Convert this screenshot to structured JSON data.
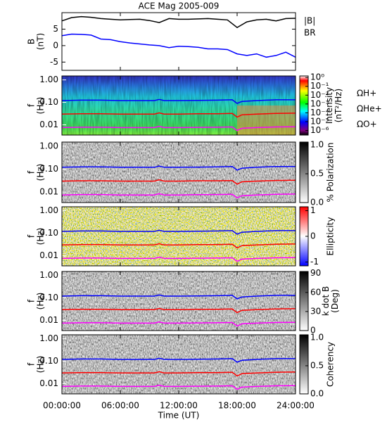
{
  "chart_data": [
    {
      "type": "line",
      "title": "ACE Mag 2005-009",
      "ylabel": [
        "B",
        "(nT)"
      ],
      "x": [
        0,
        1,
        2,
        3,
        4,
        5,
        6,
        7,
        8,
        9,
        10,
        11,
        12,
        13,
        14,
        15,
        16,
        17,
        18,
        19,
        20,
        21,
        22,
        23,
        24
      ],
      "ylim": [
        -7.5,
        10
      ],
      "yticks": [
        -5,
        0,
        5
      ],
      "series": [
        {
          "name": "|B|",
          "color": "#000000",
          "values": [
            7.5,
            8.5,
            8.8,
            8.6,
            8.2,
            8.0,
            7.8,
            7.9,
            8.0,
            7.6,
            7.0,
            8.2,
            8.0,
            8.0,
            8.1,
            8.2,
            8.0,
            7.8,
            5.5,
            7.2,
            7.8,
            8.0,
            7.5,
            8.2,
            8.3
          ]
        },
        {
          "name": "BR",
          "color": "#0000ff",
          "values": [
            3.0,
            3.5,
            3.4,
            3.2,
            2.0,
            1.8,
            1.2,
            0.8,
            0.5,
            0.2,
            0.0,
            -0.6,
            -0.2,
            -0.3,
            -0.5,
            -1.0,
            -1.0,
            -1.2,
            -2.5,
            -3.0,
            -2.5,
            -3.5,
            -3.0,
            -2.0,
            -3.5
          ]
        }
      ]
    },
    {
      "type": "spectrogram",
      "ylabel": [
        "f",
        "(Hz)"
      ],
      "colorbar_label": [
        "Intensity",
        "(nT²/Hz)"
      ],
      "colormap": "rainbow",
      "clim": [
        3e-07,
        1.5
      ],
      "clog": true,
      "cticks": [
        {
          "value": 1,
          "label": "10⁰"
        },
        {
          "value": 0.1,
          "label": "10⁻¹"
        },
        {
          "value": 0.01,
          "label": "10⁻²"
        },
        {
          "value": 0.001,
          "label": "10⁻³"
        },
        {
          "value": 0.0001,
          "label": "10⁻⁴"
        },
        {
          "value": 1e-05,
          "label": "10⁻⁵"
        },
        {
          "value": 1e-06,
          "label": "10⁻⁶"
        }
      ]
    },
    {
      "type": "spectrogram",
      "ylabel": [
        "f",
        "(Hz)"
      ],
      "colorbar_label": [
        "% Polarization"
      ],
      "colormap": "gray",
      "clim": [
        0,
        1.05
      ],
      "cticks": [
        {
          "value": 0,
          "label": "0.0"
        },
        {
          "value": 0.5,
          "label": "0.5"
        },
        {
          "value": 1,
          "label": "1.0"
        }
      ]
    },
    {
      "type": "spectrogram",
      "ylabel": [
        "f",
        "(Hz)"
      ],
      "colorbar_label": [
        "Ellipticity"
      ],
      "colormap": "bwr",
      "clim": [
        -1.15,
        1.15
      ],
      "cticks": [
        -1,
        0,
        1
      ]
    },
    {
      "type": "spectrogram",
      "ylabel": [
        "f",
        "(Hz)"
      ],
      "colorbar_label": [
        "k dot B",
        "(Deg)"
      ],
      "colormap": "gray",
      "clim": [
        0,
        93
      ],
      "cticks": [
        0,
        30,
        60,
        90
      ]
    },
    {
      "type": "spectrogram",
      "ylabel": [
        "f",
        "(Hz)"
      ],
      "colorbar_label": [
        "Coherency"
      ],
      "colormap": "gray",
      "clim": [
        0,
        1.05
      ],
      "cticks": [
        {
          "value": 0,
          "label": "0.0"
        },
        {
          "value": 0.5,
          "label": "0.5"
        },
        {
          "value": 1,
          "label": "1.0"
        }
      ]
    }
  ],
  "freq_axis": {
    "ylim": [
      0.0035,
      1.5
    ],
    "log_scale": true,
    "yticks": [
      {
        "value": 1,
        "label": "1.00"
      },
      {
        "value": 0.1,
        "label": "0.10"
      },
      {
        "value": 0.01,
        "label": "0.01"
      }
    ]
  },
  "cyclotron": {
    "x": [
      0,
      2,
      4,
      6,
      8,
      9.5,
      10,
      10.5,
      12,
      14,
      16,
      17.5,
      18,
      18.5,
      20,
      22,
      24
    ],
    "series": [
      {
        "name": "ΩH+",
        "color": "#0000ff",
        "values": [
          0.12,
          0.125,
          0.125,
          0.12,
          0.12,
          0.12,
          0.135,
          0.12,
          0.12,
          0.122,
          0.125,
          0.13,
          0.09,
          0.11,
          0.12,
          0.13,
          0.13
        ]
      },
      {
        "name": "ΩHe+",
        "color": "#ff0000",
        "values": [
          0.03,
          0.031,
          0.031,
          0.03,
          0.03,
          0.03,
          0.034,
          0.03,
          0.03,
          0.031,
          0.031,
          0.032,
          0.022,
          0.028,
          0.03,
          0.032,
          0.033
        ]
      },
      {
        "name": "ΩO+",
        "color": "#ff00ff",
        "values": [
          0.0075,
          0.0078,
          0.0078,
          0.0075,
          0.0075,
          0.0075,
          0.0085,
          0.0075,
          0.0075,
          0.0077,
          0.0078,
          0.008,
          0.0056,
          0.007,
          0.0075,
          0.008,
          0.0082
        ]
      }
    ]
  },
  "xaxis": {
    "label": "Time (UT)",
    "xlim": [
      0,
      24
    ],
    "xticks": [
      {
        "value": 0,
        "label": "00:00:00"
      },
      {
        "value": 6,
        "label": "06:00:00"
      },
      {
        "value": 12,
        "label": "12:00:00"
      },
      {
        "value": 18,
        "label": "18:00:00"
      },
      {
        "value": 24,
        "label": "24:00:00"
      }
    ]
  }
}
